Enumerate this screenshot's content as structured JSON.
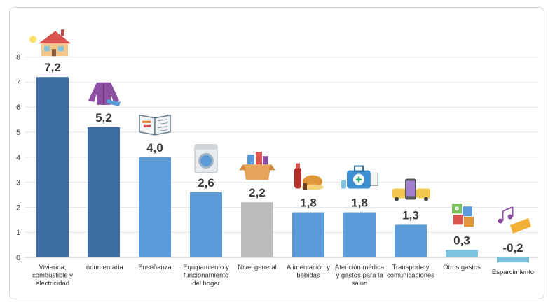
{
  "chart_data": {
    "type": "bar",
    "title": "",
    "xlabel": "",
    "ylabel": "",
    "ylim": [
      0,
      8
    ],
    "yticks": [
      0,
      1,
      2,
      3,
      4,
      5,
      6,
      7,
      8
    ],
    "grid": true,
    "categories": [
      "Vivienda, combustible y electricidad",
      "Indumentaria",
      "Enseñanza",
      "Equipamiento y funcionamiento del hogar",
      "Nivel general",
      "Alimentación y bebidas",
      "Atención médica y gastos para la salud",
      "Transporte y comunicaciones",
      "Otros gastos",
      "Esparcimiento"
    ],
    "category_lines": [
      [
        "Vivienda,",
        "combustible y",
        "electricidad"
      ],
      [
        "Indumentaria"
      ],
      [
        "Enseñanza"
      ],
      [
        "Equipamiento y",
        "funcionamiento",
        "del hogar"
      ],
      [
        "Nivel general"
      ],
      [
        "Alimentación y",
        "bebidas"
      ],
      [
        "Atención médica",
        "y gastos para la",
        "salud"
      ],
      [
        "Transporte y",
        "comunicaciones"
      ],
      [
        "Otros gastos"
      ],
      [
        "Esparcimiento"
      ]
    ],
    "values": [
      7.2,
      5.2,
      4.0,
      2.6,
      2.2,
      1.8,
      1.8,
      1.3,
      0.3,
      -0.2
    ],
    "value_labels": [
      "7,2",
      "5,2",
      "4,0",
      "2,6",
      "2,2",
      "1,8",
      "1,8",
      "1,3",
      "0,3",
      "-0,2"
    ],
    "icons": [
      "house-icon",
      "jacket-icon",
      "book-icon",
      "washing-machine-icon",
      "shopping-box-icon",
      "food-drink-icon",
      "medical-kit-icon",
      "transport-phone-icon",
      "money-puzzle-icon",
      "music-ticket-icon"
    ],
    "colors": [
      "#3d6da3",
      "#3d6da3",
      "#5b9bd9",
      "#5b9bd9",
      "#bdbdbd",
      "#5b9bd9",
      "#5b9bd9",
      "#5b9bd9",
      "#7fc3e0",
      "#7fc3e0"
    ]
  }
}
